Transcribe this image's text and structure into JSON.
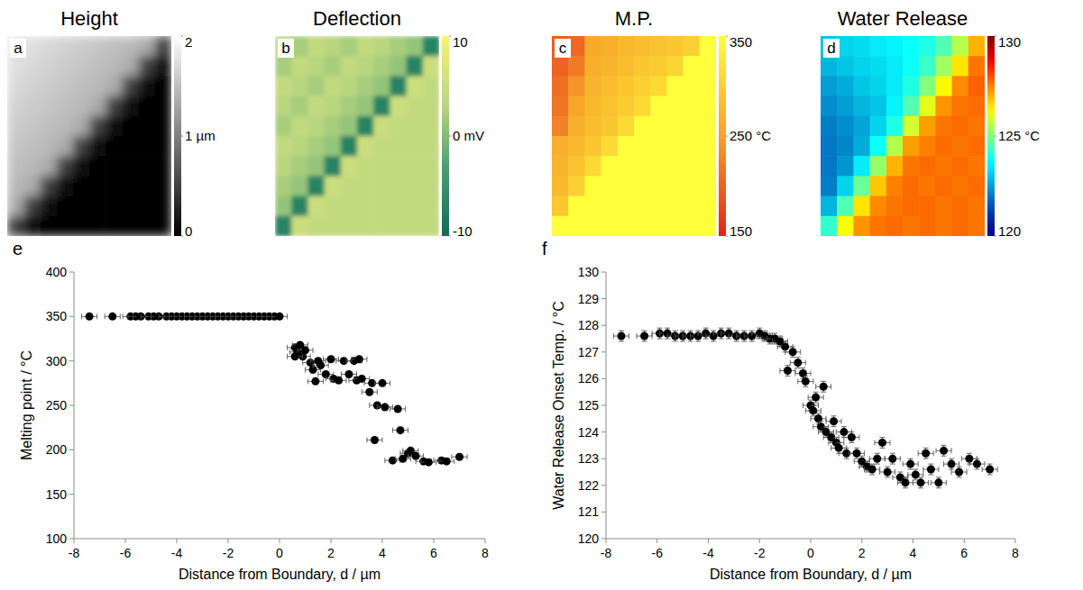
{
  "chart_data": [
    {
      "type": "heatmap",
      "panel_label": "a",
      "title": "Height",
      "cells": [
        [
          1.8,
          1.75,
          1.7,
          1.65,
          1.6,
          1.55,
          1.5,
          1.45,
          1.35,
          0.5
        ],
        [
          1.75,
          1.7,
          1.65,
          1.6,
          1.55,
          1.5,
          1.45,
          1.35,
          0.5,
          0.1
        ],
        [
          1.7,
          1.65,
          1.6,
          1.55,
          1.5,
          1.45,
          1.35,
          0.5,
          0.1,
          0.05
        ],
        [
          1.65,
          1.6,
          1.55,
          1.5,
          1.45,
          1.35,
          0.5,
          0.1,
          0.05,
          0.05
        ],
        [
          1.6,
          1.55,
          1.5,
          1.45,
          1.35,
          0.5,
          0.1,
          0.05,
          0.05,
          0.05
        ],
        [
          1.55,
          1.5,
          1.45,
          1.35,
          0.5,
          0.1,
          0.05,
          0.05,
          0.05,
          0.05
        ],
        [
          1.5,
          1.45,
          1.35,
          0.5,
          0.1,
          0.05,
          0.05,
          0.05,
          0.05,
          0.05
        ],
        [
          1.45,
          1.35,
          0.5,
          0.1,
          0.05,
          0.05,
          0.05,
          0.05,
          0.05,
          0.05
        ],
        [
          1.35,
          0.5,
          0.1,
          0.05,
          0.05,
          0.05,
          0.05,
          0.05,
          0.05,
          0.05
        ],
        [
          0.5,
          0.1,
          0.05,
          0.05,
          0.05,
          0.05,
          0.05,
          0.05,
          0.05,
          0.05
        ]
      ],
      "colorbar_range": [
        0,
        2
      ],
      "colorbar_ticks": [
        0,
        {
          "value": 1,
          "label": "1 µm"
        },
        2
      ]
    },
    {
      "type": "heatmap",
      "panel_label": "b",
      "title": "Deflection",
      "cells": [
        [
          3,
          2,
          4,
          3,
          2,
          4,
          3,
          2,
          1,
          -7
        ],
        [
          2,
          4,
          3,
          2,
          4,
          3,
          2,
          1,
          -7,
          5
        ],
        [
          4,
          3,
          2,
          4,
          3,
          2,
          1,
          -7,
          5,
          4
        ],
        [
          3,
          2,
          4,
          3,
          2,
          1,
          -7,
          5,
          4,
          4
        ],
        [
          2,
          4,
          3,
          2,
          1,
          -7,
          5,
          4,
          4,
          4
        ],
        [
          4,
          3,
          2,
          1,
          -7,
          5,
          4,
          4,
          4,
          4
        ],
        [
          3,
          2,
          1,
          -7,
          5,
          4,
          4,
          4,
          4,
          4
        ],
        [
          2,
          1,
          -7,
          5,
          4,
          4,
          4,
          4,
          4,
          4
        ],
        [
          1,
          -7,
          5,
          4,
          4,
          4,
          4,
          4,
          4,
          4
        ],
        [
          -7,
          5,
          4,
          4,
          4,
          4,
          4,
          4,
          4,
          4
        ]
      ],
      "colorbar_range": [
        -10,
        10
      ],
      "colorbar_ticks": [
        -10,
        {
          "value": 0,
          "label": "0 mV"
        },
        10
      ]
    },
    {
      "type": "heatmap",
      "panel_label": "c",
      "title": "M.P.",
      "cells": [
        [
          195,
          205,
          260,
          265,
          275,
          280,
          285,
          290,
          300,
          350
        ],
        [
          200,
          220,
          265,
          270,
          280,
          290,
          295,
          305,
          350,
          350
        ],
        [
          210,
          240,
          270,
          280,
          290,
          300,
          310,
          350,
          350,
          350
        ],
        [
          215,
          255,
          275,
          285,
          295,
          310,
          350,
          350,
          350,
          350
        ],
        [
          225,
          265,
          280,
          290,
          310,
          350,
          350,
          350,
          350,
          350
        ],
        [
          265,
          275,
          290,
          310,
          350,
          350,
          350,
          350,
          350,
          350
        ],
        [
          270,
          285,
          310,
          350,
          350,
          350,
          350,
          350,
          350,
          350
        ],
        [
          275,
          300,
          350,
          350,
          350,
          350,
          350,
          350,
          350,
          350
        ],
        [
          290,
          350,
          350,
          350,
          350,
          350,
          350,
          350,
          350,
          350
        ],
        [
          350,
          350,
          350,
          350,
          350,
          350,
          350,
          350,
          350,
          350
        ]
      ],
      "colorbar_range": [
        150,
        350
      ],
      "colorbar_ticks": [
        150,
        {
          "value": 250,
          "label": "250 °C"
        },
        350
      ]
    },
    {
      "type": "heatmap",
      "panel_label": "d",
      "title": "Water Release",
      "cells": [
        [
          123.0,
          123.2,
          123.3,
          123.5,
          123.6,
          123.8,
          124.0,
          124.5,
          125.5,
          127.0
        ],
        [
          122.8,
          123.0,
          123.2,
          123.3,
          123.5,
          123.8,
          124.3,
          125.3,
          126.5,
          127.6
        ],
        [
          122.5,
          122.7,
          123.0,
          123.2,
          123.5,
          124.0,
          125.0,
          126.3,
          127.4,
          127.8
        ],
        [
          122.3,
          122.5,
          122.8,
          123.0,
          123.6,
          124.5,
          126.0,
          127.3,
          127.6,
          127.7
        ],
        [
          122.1,
          122.3,
          122.6,
          123.2,
          124.0,
          125.8,
          127.2,
          127.6,
          127.7,
          127.6
        ],
        [
          122.0,
          122.2,
          122.7,
          123.8,
          125.5,
          127.2,
          127.5,
          127.7,
          127.6,
          127.7
        ],
        [
          122.0,
          122.4,
          123.5,
          125.2,
          127.0,
          127.6,
          127.7,
          127.6,
          127.7,
          127.6
        ],
        [
          122.1,
          123.2,
          124.8,
          126.8,
          127.5,
          127.7,
          127.6,
          127.7,
          127.6,
          127.7
        ],
        [
          122.8,
          124.5,
          126.5,
          127.4,
          127.6,
          127.7,
          127.7,
          127.6,
          127.7,
          127.6
        ],
        [
          124.2,
          126.2,
          127.3,
          127.6,
          127.7,
          127.6,
          127.7,
          127.6,
          127.7,
          127.6
        ]
      ],
      "colorbar_range": [
        120,
        130
      ],
      "colorbar_ticks": [
        120,
        {
          "value": 125,
          "label": "125 °C"
        },
        130
      ]
    },
    {
      "type": "scatter",
      "panel_label": "e",
      "marker": "circle",
      "color": "#000000",
      "x_label": "Distance from Boundary, d / µm",
      "y_label": "Melting point / °C",
      "x": [
        -7.4,
        -6.5,
        -5.8,
        -5.6,
        -5.4,
        -5.1,
        -4.9,
        -4.7,
        -4.4,
        -4.2,
        -4.0,
        -3.8,
        -3.6,
        -3.4,
        -3.2,
        -3.0,
        -2.8,
        -2.6,
        -2.4,
        -2.2,
        -2.0,
        -1.8,
        -1.6,
        -1.4,
        -1.2,
        -1.0,
        -0.8,
        -0.6,
        -0.4,
        -0.2,
        0.0,
        0.6,
        0.7,
        0.8,
        0.9,
        0.6,
        1.0,
        1.2,
        1.3,
        1.4,
        1.5,
        1.6,
        1.8,
        2.0,
        2.1,
        2.3,
        2.5,
        2.7,
        2.9,
        3.0,
        3.1,
        3.2,
        3.5,
        3.6,
        3.7,
        3.8,
        4.0,
        4.1,
        4.4,
        4.6,
        4.7,
        4.8,
        5.0,
        5.1,
        5.3,
        5.6,
        5.8,
        6.3,
        6.5,
        7.0
      ],
      "y": [
        350,
        350,
        350,
        350,
        350,
        350,
        350,
        350,
        350,
        350,
        350,
        350,
        350,
        350,
        350,
        350,
        350,
        350,
        350,
        350,
        350,
        350,
        350,
        350,
        350,
        350,
        350,
        350,
        350,
        350,
        350,
        315,
        310,
        318,
        305,
        305,
        312,
        298,
        290,
        277,
        300,
        295,
        285,
        302,
        280,
        278,
        300,
        285,
        300,
        278,
        302,
        280,
        265,
        275,
        211,
        250,
        275,
        248,
        188,
        246,
        222,
        190,
        196,
        199,
        193,
        187,
        186,
        188,
        187,
        192
      ],
      "xerr": [
        0.3,
        0.3,
        0.3,
        0.3,
        0.3,
        0.3,
        0.3,
        0.3,
        0.3,
        0.3,
        0.3,
        0.3,
        0.3,
        0.3,
        0.3,
        0.3,
        0.3,
        0.3,
        0.3,
        0.3,
        0.3,
        0.3,
        0.3,
        0.3,
        0.3,
        0.3,
        0.3,
        0.3,
        0.3,
        0.3,
        0.3,
        0.3,
        0.3,
        0.3,
        0.3,
        0.3,
        0.3,
        0.3,
        0.3,
        0.3,
        0.3,
        0.3,
        0.3,
        0.3,
        0.3,
        0.3,
        0.3,
        0.3,
        0.3,
        0.3,
        0.3,
        0.3,
        0.3,
        0.3,
        0.3,
        0.3,
        0.3,
        0.3,
        0.3,
        0.3,
        0.3,
        0.3,
        0.3,
        0.3,
        0.3,
        0.3,
        0.3,
        0.3,
        0.3,
        0.3
      ],
      "xlim": [
        -8,
        8
      ],
      "xticks": [
        -8,
        -6,
        -4,
        -2,
        0,
        2,
        4,
        6,
        8
      ],
      "ylim": [
        100,
        400
      ],
      "yticks": [
        100,
        150,
        200,
        250,
        300,
        350,
        400
      ]
    },
    {
      "type": "scatter",
      "panel_label": "f",
      "marker": "circle",
      "color": "#000000",
      "x_label": "Distance from Boundary, d / µm",
      "y_label": "Water Release Onset Temp. / °C",
      "x": [
        -7.4,
        -6.5,
        -5.9,
        -5.6,
        -5.3,
        -5.0,
        -4.7,
        -4.4,
        -4.1,
        -3.8,
        -3.5,
        -3.2,
        -2.9,
        -2.6,
        -2.3,
        -2.0,
        -1.8,
        -1.6,
        -1.4,
        -1.2,
        -1.0,
        -0.9,
        -0.7,
        -0.5,
        -0.3,
        -0.2,
        0.0,
        0.1,
        0.2,
        0.3,
        0.4,
        0.5,
        0.6,
        0.8,
        0.9,
        1.0,
        1.1,
        1.3,
        1.4,
        1.6,
        1.8,
        2.0,
        2.2,
        2.4,
        2.6,
        2.8,
        3.0,
        3.2,
        3.5,
        3.7,
        3.9,
        4.1,
        4.3,
        4.5,
        4.7,
        5.0,
        5.2,
        5.5,
        5.8,
        6.2,
        6.5,
        7.0
      ],
      "y": [
        127.6,
        127.6,
        127.7,
        127.7,
        127.6,
        127.6,
        127.6,
        127.6,
        127.7,
        127.6,
        127.7,
        127.7,
        127.6,
        127.6,
        127.6,
        127.7,
        127.6,
        127.5,
        127.5,
        127.4,
        127.2,
        126.3,
        127.0,
        126.6,
        126.2,
        125.9,
        125.0,
        124.8,
        125.3,
        124.5,
        124.2,
        125.7,
        124.0,
        123.8,
        124.4,
        123.6,
        123.4,
        124.0,
        123.2,
        123.8,
        123.2,
        122.9,
        122.7,
        122.6,
        123.0,
        123.6,
        122.5,
        123.0,
        122.3,
        122.1,
        122.8,
        122.4,
        122.1,
        123.2,
        122.6,
        122.1,
        123.3,
        122.8,
        122.5,
        123.0,
        122.8,
        122.6
      ],
      "xerr": [
        0.3,
        0.3,
        0.3,
        0.3,
        0.3,
        0.3,
        0.3,
        0.3,
        0.3,
        0.3,
        0.3,
        0.3,
        0.3,
        0.3,
        0.3,
        0.3,
        0.3,
        0.3,
        0.3,
        0.3,
        0.3,
        0.3,
        0.3,
        0.3,
        0.3,
        0.3,
        0.3,
        0.3,
        0.3,
        0.3,
        0.3,
        0.3,
        0.3,
        0.3,
        0.3,
        0.3,
        0.3,
        0.3,
        0.3,
        0.3,
        0.3,
        0.3,
        0.3,
        0.3,
        0.3,
        0.3,
        0.3,
        0.3,
        0.3,
        0.3,
        0.3,
        0.3,
        0.3,
        0.3,
        0.3,
        0.3,
        0.3,
        0.3,
        0.3,
        0.3,
        0.3,
        0.3
      ],
      "yerr": [
        0.2,
        0.2,
        0.2,
        0.2,
        0.2,
        0.2,
        0.2,
        0.2,
        0.2,
        0.2,
        0.2,
        0.2,
        0.2,
        0.2,
        0.2,
        0.2,
        0.2,
        0.2,
        0.2,
        0.2,
        0.2,
        0.2,
        0.2,
        0.2,
        0.2,
        0.2,
        0.2,
        0.2,
        0.2,
        0.2,
        0.2,
        0.2,
        0.2,
        0.2,
        0.2,
        0.2,
        0.2,
        0.2,
        0.2,
        0.2,
        0.2,
        0.2,
        0.2,
        0.2,
        0.2,
        0.2,
        0.2,
        0.2,
        0.2,
        0.2,
        0.2,
        0.2,
        0.2,
        0.2,
        0.2,
        0.2,
        0.2,
        0.2,
        0.2,
        0.2,
        0.2,
        0.2
      ],
      "xlim": [
        -8,
        8
      ],
      "xticks": [
        -8,
        -6,
        -4,
        -2,
        0,
        2,
        4,
        6,
        8
      ],
      "ylim": [
        120,
        130
      ],
      "yticks": [
        120,
        121,
        122,
        123,
        124,
        125,
        126,
        127,
        128,
        129,
        130
      ]
    }
  ]
}
